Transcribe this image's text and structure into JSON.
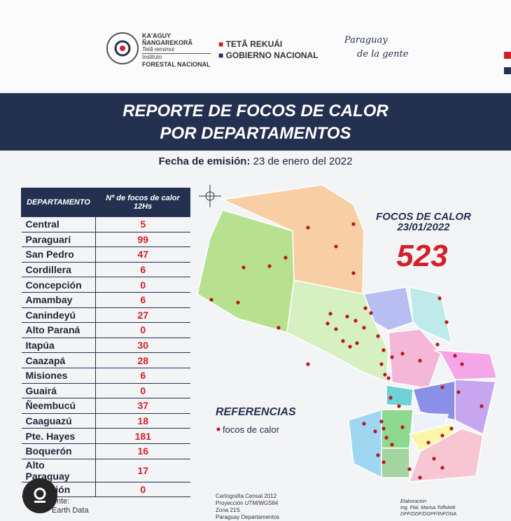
{
  "header": {
    "org_line1": "KA'AGUY",
    "org_line2": "ÑANGAREKORÃ",
    "org_line3": "Tetã remimoi",
    "org_line4": "Instituto",
    "org_line5": "FORESTAL NACIONAL",
    "gov_line1": "TETÃ REKUÁI",
    "gov_line2": "GOBIERNO NACIONAL",
    "slogan_line1": "Paraguay",
    "slogan_line2": "de la gente"
  },
  "title": {
    "line1": "REPORTE DE FOCOS DE CALOR",
    "line2": "POR DEPARTAMENTOS"
  },
  "date": {
    "label": "Fecha de emisión:",
    "value": "23 de enero  del 2022"
  },
  "table": {
    "headers": [
      "DEPARTAMENTO",
      "Nº de focos de calor 12Hs"
    ],
    "rows": [
      [
        "Central",
        "5"
      ],
      [
        "Paraguarí",
        "99"
      ],
      [
        "San Pedro",
        "47"
      ],
      [
        "Cordillera",
        "6"
      ],
      [
        "Concepción",
        "0"
      ],
      [
        "Amambay",
        "6"
      ],
      [
        "Canindeyú",
        "27"
      ],
      [
        "Alto Paraná",
        "0"
      ],
      [
        "Itapúa",
        "30"
      ],
      [
        "Caazapá",
        "28"
      ],
      [
        "Misiones",
        "6"
      ],
      [
        "Guairá",
        "0"
      ],
      [
        "Ñeembucú",
        "37"
      ],
      [
        "Caaguazú",
        "18"
      ],
      [
        "Pte. Hayes",
        "181"
      ],
      [
        "Boquerón",
        "16"
      ],
      [
        "Alto Paraguay",
        "17"
      ],
      [
        "Asunción",
        "0"
      ]
    ]
  },
  "map": {
    "total_title": "FOCOS DE CALOR",
    "total_date": "23/01/2022",
    "total": "523",
    "legend_title": "REFERENCIAS",
    "legend_item": "focos de calor"
  },
  "footer": {
    "source_label": "Fuente:",
    "source": "Earth Data",
    "carto": [
      "Cartografía Censal 2012",
      "Proyección UTM/WGS84",
      "Zona 21S",
      "Paraguay Departamentos"
    ],
    "credit": [
      "Elaboración",
      "Ing. Ftal. Marisa Toffoletti",
      "DPF/DDF/DGPF/INFONA"
    ]
  }
}
